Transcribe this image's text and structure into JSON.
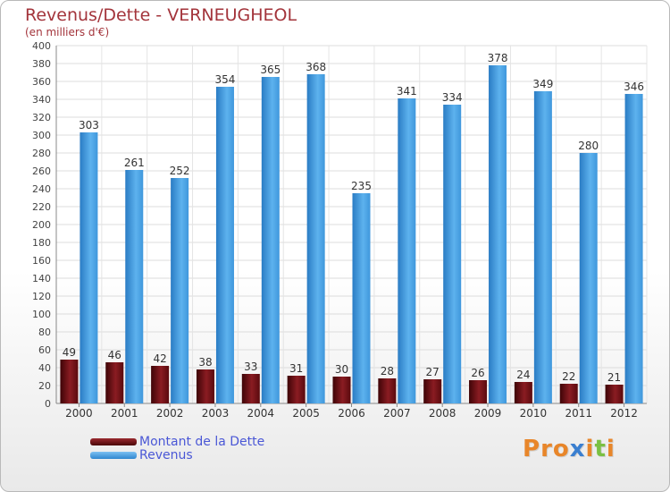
{
  "header": {
    "title": "Revenus/Dette - VERNEUGHEOL",
    "subtitle": "(en milliers d'€)"
  },
  "legend": {
    "items": [
      {
        "label": "Montant de la Dette",
        "color": "#6b0f14"
      },
      {
        "label": "Revenus",
        "color": "#4aa3e6"
      }
    ]
  },
  "brand": {
    "text": "Proxiti",
    "colors": [
      "#e8862a",
      "#e8862a",
      "#e8862a",
      "#3a7fd0",
      "#e8862a",
      "#7ac043",
      "#e8862a"
    ]
  },
  "chart_data": {
    "type": "bar",
    "title": "Revenus/Dette - VERNEUGHEOL",
    "subtitle": "(en milliers d'€)",
    "categories": [
      "2000",
      "2001",
      "2002",
      "2003",
      "2004",
      "2005",
      "2006",
      "2007",
      "2008",
      "2009",
      "2010",
      "2011",
      "2012"
    ],
    "series": [
      {
        "name": "Montant de la Dette",
        "values": [
          49,
          46,
          42,
          38,
          33,
          31,
          30,
          28,
          27,
          26,
          24,
          22,
          21
        ],
        "color": "#6b0f14"
      },
      {
        "name": "Revenus",
        "values": [
          303,
          261,
          252,
          354,
          365,
          368,
          235,
          341,
          334,
          378,
          349,
          280,
          346
        ],
        "color": "#4aa3e6"
      }
    ],
    "ylim": [
      0,
      400
    ],
    "yticks": [
      0,
      20,
      40,
      60,
      80,
      100,
      120,
      140,
      160,
      180,
      200,
      220,
      240,
      260,
      280,
      300,
      320,
      340,
      360,
      380,
      400
    ],
    "grid": true,
    "legend_position": "bottom-left",
    "xlabel": "",
    "ylabel": ""
  }
}
